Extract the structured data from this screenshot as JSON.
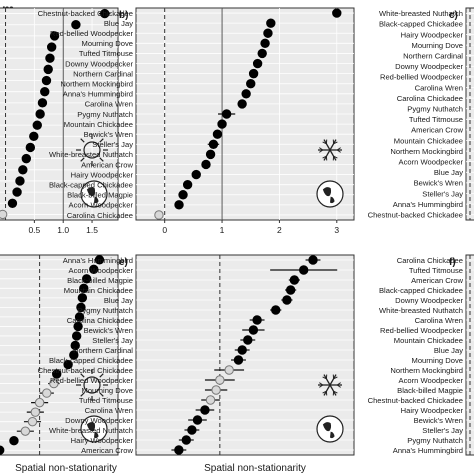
{
  "figure": {
    "top_cut_text": "m",
    "mid_cut_text": "h",
    "x_axis_title": "Spatial non-stationarity"
  },
  "chart_data": [
    {
      "id": "a",
      "panel_label": "",
      "type": "scatter",
      "season": "summer",
      "categories": [],
      "x": [
        1.72,
        1.22,
        0.85,
        0.8,
        0.77,
        0.74,
        0.71,
        0.68,
        0.64,
        0.6,
        0.55,
        0.49,
        0.43,
        0.36,
        0.3,
        0.25,
        0.2,
        0.12,
        -0.05
      ],
      "err": [
        0.1,
        0.05,
        0.03,
        0.02,
        0.02,
        0.02,
        0.02,
        0.02,
        0.02,
        0.02,
        0.02,
        0.02,
        0.02,
        0.02,
        0.04,
        0.06,
        0.02,
        0.02,
        0.06
      ],
      "filled": [
        true,
        true,
        true,
        true,
        true,
        true,
        true,
        true,
        true,
        true,
        true,
        true,
        true,
        true,
        true,
        true,
        true,
        true,
        false
      ],
      "xlim": [
        -0.2,
        1.95
      ],
      "xticks": [
        "0.5",
        "1.0",
        "1.5"
      ],
      "xtick_values": [
        0.5,
        1.0,
        1.5
      ],
      "ref_dashed": 0,
      "ref_solid": 1,
      "xlabel": ""
    },
    {
      "id": "b",
      "panel_label": "b)",
      "type": "scatter",
      "season": "winter",
      "categories": [
        "Chestnut-backed Chickadee",
        "Blue Jay",
        "Red-bellied Woodpecker",
        "Mourning Dove",
        "Tufted Titmouse",
        "Downy Woodpecker",
        "Northern Cardinal",
        "Northern Mockingbird",
        "Anna's Hummingbird",
        "Carolina Wren",
        "Pygmy Nuthatch",
        "Mountain Chickadee",
        "Bewick's Wren",
        "Steller's Jay",
        "White-breasted Nuthatch",
        "American Crow",
        "Hairy Woodpecker",
        "Black-capped Chickadee",
        "Black-billed Magpie",
        "Acorn Woodpecker",
        "Carolina Chickadee"
      ],
      "x": [
        3.0,
        1.85,
        1.8,
        1.75,
        1.7,
        1.62,
        1.55,
        1.5,
        1.42,
        1.35,
        1.08,
        1.0,
        0.92,
        0.85,
        0.8,
        0.72,
        0.55,
        0.4,
        0.32,
        0.25,
        -0.1
      ],
      "err": [
        0.05,
        0.03,
        0.03,
        0.03,
        0.03,
        0.03,
        0.03,
        0.03,
        0.03,
        0.03,
        0.15,
        0.03,
        0.03,
        0.1,
        0.03,
        0.03,
        0.03,
        0.03,
        0.03,
        0.03,
        0.05
      ],
      "filled": [
        true,
        true,
        true,
        true,
        true,
        true,
        true,
        true,
        true,
        true,
        true,
        true,
        true,
        true,
        true,
        true,
        true,
        true,
        true,
        true,
        false
      ],
      "xlim": [
        -0.5,
        3.3
      ],
      "xticks": [
        "0",
        "1",
        "2",
        "3"
      ],
      "xtick_values": [
        0,
        1,
        2,
        3
      ],
      "ref_dashed": 0,
      "ref_solid": 1,
      "xlabel": ""
    },
    {
      "id": "c",
      "panel_label": "c)",
      "type": "scatter",
      "season": "",
      "categories": [
        "White-breasted Nuthatch",
        "Black-capped Chickadee",
        "Hairy Woodpecker",
        "Mourning Dove",
        "Northern Cardinal",
        "Downy Woodpecker",
        "Red-bellied Woodpecker",
        "Carolina Wren",
        "Carolina Chickadee",
        "Pygmy Nuthatch",
        "Tufted Titmouse",
        "American Crow",
        "Mountain Chickadee",
        "Northern Mockingbird",
        "Acorn Woodpecker",
        "Blue Jay",
        "Bewick's Wren",
        "Steller's Jay",
        "Anna's Hummingbird",
        "Chestnut-backed Chickadee"
      ],
      "x": [],
      "err": [],
      "filled": [],
      "xlim": [
        0,
        1
      ],
      "xticks": [],
      "xtick_values": [],
      "ref_dashed": 0,
      "ref_solid": null,
      "xlabel": ""
    },
    {
      "id": "d",
      "panel_label": "",
      "type": "scatter",
      "season": "summer",
      "categories": [],
      "x": [
        0.42,
        0.38,
        0.33,
        0.31,
        0.3,
        0.29,
        0.28,
        0.27,
        0.26,
        0.25,
        0.24,
        0.2,
        0.12,
        0.1,
        0.05,
        0.0,
        -0.03,
        -0.05,
        -0.1,
        -0.18,
        -0.28
      ],
      "err": [
        0.03,
        0.02,
        0.02,
        0.02,
        0.02,
        0.02,
        0.02,
        0.02,
        0.02,
        0.02,
        0.02,
        0.02,
        0.03,
        0.04,
        0.05,
        0.06,
        0.06,
        0.06,
        0.06,
        0.03,
        0.03
      ],
      "filled": [
        true,
        true,
        true,
        true,
        true,
        true,
        true,
        true,
        true,
        true,
        true,
        true,
        true,
        false,
        false,
        false,
        false,
        false,
        false,
        true,
        true
      ],
      "xlim": [
        -0.32,
        0.55
      ],
      "xticks": [],
      "xtick_values": [],
      "ref_dashed": 0,
      "ref_solid": null,
      "xlabel": "Spatial non-stationarity"
    },
    {
      "id": "e",
      "panel_label": "e)",
      "type": "scatter",
      "season": "winter",
      "categories": [
        "Anna's Hummingbird",
        "Acorn Woodpecker",
        "Black-billed Magpie",
        "Mountain Chickadee",
        "Blue Jay",
        "Pygmy Nuthatch",
        "Carolina Chickadee",
        "Bewick's Wren",
        "Steller's Jay",
        "Northern Cardinal",
        "Black-capped Chickadee",
        "Chestnut-backed Chickadee",
        "Red-bellied Woodpecker",
        "Mourning Dove",
        "Tufted Titmouse",
        "Carolina Wren",
        "Downy Woodpecker",
        "White-breasted Nuthatch",
        "Hairy Woodpecker",
        "American Crow"
      ],
      "x": [
        0.5,
        0.45,
        0.4,
        0.38,
        0.36,
        0.3,
        0.2,
        0.18,
        0.15,
        0.12,
        0.1,
        0.05,
        0.0,
        -0.02,
        -0.05,
        -0.08,
        -0.12,
        -0.15,
        -0.18,
        -0.22
      ],
      "err": [
        0.04,
        0.18,
        0.03,
        0.03,
        0.03,
        0.03,
        0.04,
        0.06,
        0.04,
        0.04,
        0.04,
        0.08,
        0.08,
        0.06,
        0.05,
        0.05,
        0.05,
        0.04,
        0.04,
        0.04
      ],
      "filled": [
        true,
        true,
        true,
        true,
        true,
        true,
        true,
        true,
        true,
        true,
        true,
        false,
        false,
        false,
        false,
        true,
        true,
        true,
        true,
        true
      ],
      "xlim": [
        -0.45,
        0.72
      ],
      "xticks": [],
      "xtick_values": [],
      "ref_dashed": 0,
      "ref_solid": null,
      "xlabel": "Spatial non-stationarity"
    },
    {
      "id": "f",
      "panel_label": "f)",
      "type": "scatter",
      "season": "",
      "categories": [
        "Carolina Chickadee",
        "Tufted Titmouse",
        "American Crow",
        "Black-capped Chickadee",
        "Downy Woodpecker",
        "White-breasted Nuthatch",
        "Carolina Wren",
        "Red-bellied Woodpecker",
        "Mountain Chickadee",
        "Blue Jay",
        "Mourning Dove",
        "Northern Mockingbird",
        "Acorn Woodpecker",
        "Black-billed Magpie",
        "Chestnut-backed Chickadee",
        "Hairy Woodpecker",
        "Bewick's Wren",
        "Steller's Jay",
        "Pygmy Nuthatch",
        "Anna's Hummingbird"
      ],
      "x": [],
      "err": [],
      "filled": [],
      "xlim": [
        0,
        1
      ],
      "xticks": [],
      "xtick_values": [],
      "ref_dashed": 0,
      "ref_solid": null,
      "xlabel": ""
    }
  ]
}
